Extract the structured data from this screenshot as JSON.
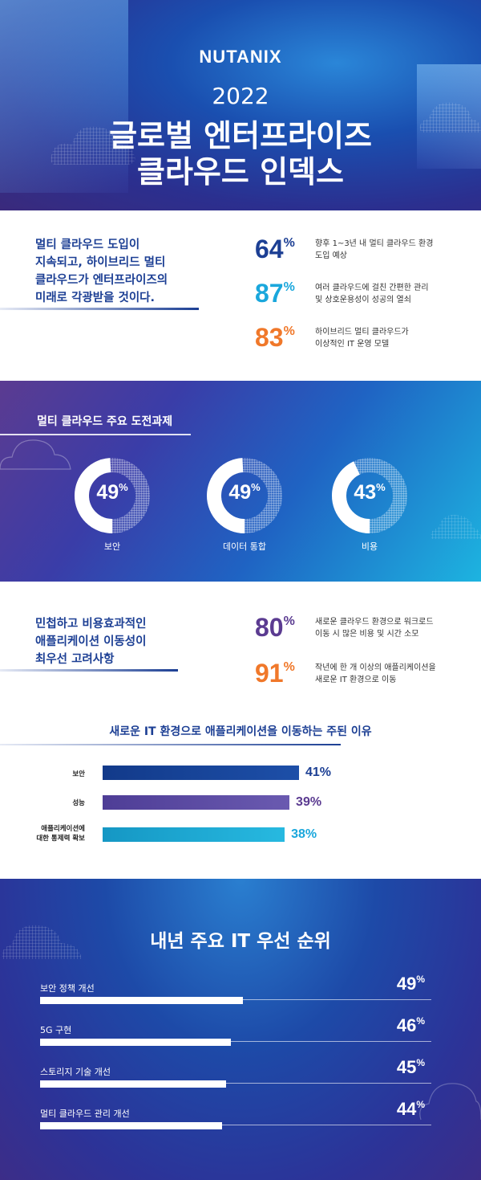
{
  "header": {
    "logo": "NUTANIX",
    "year": "2022",
    "title_line1": "글로벌 엔터프라이즈",
    "title_line2": "클라우드 인덱스"
  },
  "section1": {
    "lead": [
      "멀티 클라우드 도입이",
      "지속되고, 하이브리드 멀티",
      "클라우드가 엔터프라이즈의",
      "미래로 각광받을 것이다."
    ],
    "stats": [
      {
        "value": "64",
        "unit": "%",
        "color": "#1c3f94",
        "desc": [
          "향후 1~3년 내 멀티 클라우드 환경",
          "도입 예상"
        ]
      },
      {
        "value": "87",
        "unit": "%",
        "color": "#1aa7dc",
        "desc": [
          "여러 클라우드에 걸친 간편한 관리",
          "및 상호운용성이 성공의 열쇠"
        ]
      },
      {
        "value": "83",
        "unit": "%",
        "color": "#f0782a",
        "desc": [
          "하이브리드 멀티 클라우드가",
          "이상적인 IT 운영 모델"
        ]
      }
    ]
  },
  "challenges": {
    "title": "멀티 클라우드 주요 도전과제",
    "items": [
      {
        "value": "49",
        "unit": "%",
        "label": "보안",
        "fraction": 0.49
      },
      {
        "value": "49",
        "unit": "%",
        "label": "데이터 통합",
        "fraction": 0.49
      },
      {
        "value": "43",
        "unit": "%",
        "label": "비용",
        "fraction": 0.43
      }
    ]
  },
  "section2": {
    "lead": [
      "민첩하고 비용효과적인",
      "애플리케이션 이동성이",
      "최우선 고려사항"
    ],
    "stats": [
      {
        "value": "80",
        "unit": "%",
        "color": "#5b3b91",
        "desc": [
          "새로운 클라우드 환경으로 워크로드",
          "이동 시 많은 비용 및 시간 소모"
        ]
      },
      {
        "value": "91",
        "unit": "%",
        "color": "#f0782a",
        "desc": [
          "작년에 한 개 이상의 애플리케이션을",
          "새로운 IT 환경으로 이동"
        ]
      }
    ]
  },
  "reasons": {
    "title": "새로운 IT 환경으로 애플리케이션을 이동하는 주된 이유",
    "items": [
      {
        "label": [
          "보안"
        ],
        "value": 41,
        "display": "41%",
        "color_from": "#123a8a",
        "color_to": "#1d4fa8",
        "text_color": "#1c3f94"
      },
      {
        "label": [
          "성능"
        ],
        "value": 39,
        "display": "39%",
        "color_from": "#4e3d96",
        "color_to": "#6a5ab0",
        "text_color": "#5b3b91"
      },
      {
        "label": [
          "애플리케이션에",
          "대한 통제력 확보"
        ],
        "value": 38,
        "display": "38%",
        "color_from": "#1597c4",
        "color_to": "#27b9e0",
        "text_color": "#1aa7dc"
      }
    ]
  },
  "priorities": {
    "title": "내년 주요 IT 우선 순위",
    "items": [
      {
        "label": "보안 정책 개선",
        "value": "49",
        "unit": "%",
        "fraction": 0.49
      },
      {
        "label": "5G 구현",
        "value": "46",
        "unit": "%",
        "fraction": 0.46
      },
      {
        "label": "스토리지 기술 개선",
        "value": "45",
        "unit": "%",
        "fraction": 0.45
      },
      {
        "label": "멀티 클라우드 관리 개선",
        "value": "44",
        "unit": "%",
        "fraction": 0.44
      }
    ]
  }
}
